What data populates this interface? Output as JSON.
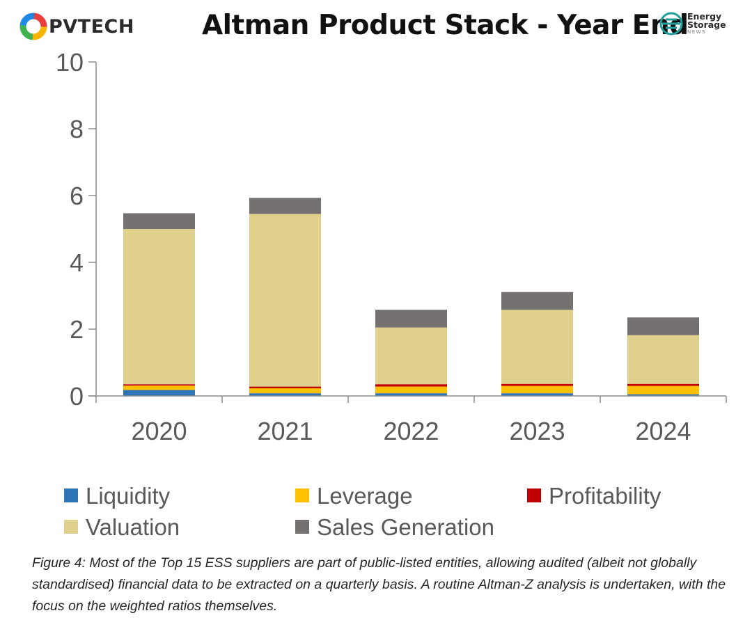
{
  "header": {
    "brand_left": "PVTECH",
    "brand_right_line1": "Energy",
    "brand_right_line2": "Storage",
    "brand_right_line3": "NEWS"
  },
  "chart_data": {
    "type": "bar",
    "stacked": true,
    "title": "Altman Product Stack - Year End",
    "xlabel": "",
    "ylabel": "",
    "categories": [
      "2020",
      "2021",
      "2022",
      "2023",
      "2024"
    ],
    "ylim": [
      0,
      10
    ],
    "yticks": [
      "0",
      "2",
      "4",
      "6",
      "8",
      "10"
    ],
    "grid": false,
    "legend_position": "bottom",
    "series": [
      {
        "name": "Liquidity",
        "color": "#2e75b6",
        "values": [
          0.18,
          0.08,
          0.08,
          0.08,
          0.05
        ]
      },
      {
        "name": "Leverage",
        "color": "#ffc000",
        "values": [
          0.13,
          0.15,
          0.2,
          0.22,
          0.25
        ]
      },
      {
        "name": "Profitability",
        "color": "#c00000",
        "values": [
          0.04,
          0.05,
          0.07,
          0.06,
          0.06
        ]
      },
      {
        "name": "Valuation",
        "color": "#dfd08b",
        "values": [
          4.65,
          5.17,
          1.7,
          2.22,
          1.46
        ]
      },
      {
        "name": "Sales Generation",
        "color": "#767171",
        "values": [
          0.47,
          0.48,
          0.53,
          0.53,
          0.53
        ]
      }
    ]
  },
  "caption": "Figure 4: Most of the Top 15 ESS suppliers are part of public-listed entities, allowing audited (albeit not globally standardised) financial data to be extracted on a quarterly basis. A routine Altman-Z analysis is undertaken, with the focus on the weighted ratios themselves."
}
